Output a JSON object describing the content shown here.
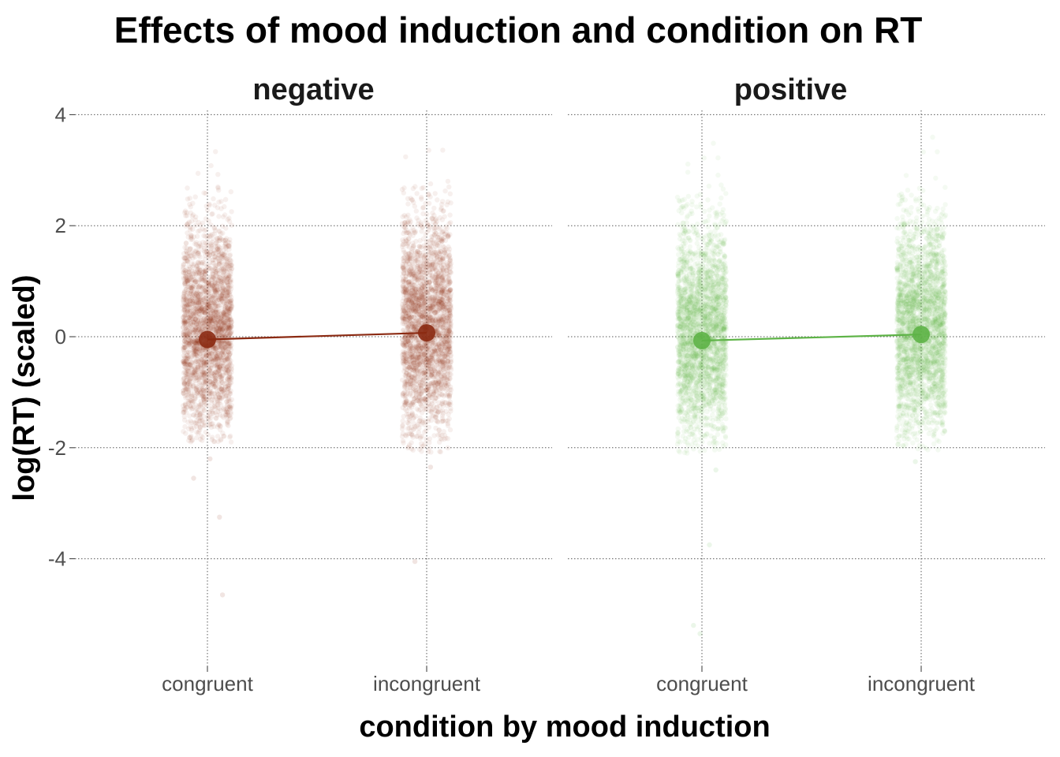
{
  "chart_data": {
    "type": "scatter",
    "title": "Effects of mood induction and condition on RT",
    "xlabel": "condition by mood induction",
    "ylabel": "log(RT) (scaled)",
    "ylim": [
      -5.4,
      4.1
    ],
    "yticks": [
      -4,
      -2,
      0,
      2,
      4
    ],
    "yticklabels": [
      "-4",
      "-2",
      "0",
      "2",
      "4"
    ],
    "categories": [
      "congruent",
      "incongruent"
    ],
    "grid": true,
    "legend": "none",
    "panels": [
      {
        "name": "negative",
        "color": "#8B2A12",
        "means": [
          -0.05,
          0.07
        ],
        "jitter": [
          {
            "category": "congruent",
            "core_range": [
              -1.9,
              3.55
            ],
            "outliers": [
              -2.55,
              -3.25,
              -4.65,
              -2.2
            ]
          },
          {
            "category": "incongruent",
            "core_range": [
              -2.1,
              3.6
            ],
            "outliers": [
              -2.35,
              -4.05
            ]
          }
        ]
      },
      {
        "name": "positive",
        "color": "#5DB346",
        "means": [
          -0.07,
          0.04
        ],
        "jitter": [
          {
            "category": "congruent",
            "core_range": [
              -2.1,
              3.6
            ],
            "outliers": [
              -2.4,
              -3.75,
              -5.2,
              -5.35
            ]
          },
          {
            "category": "incongruent",
            "core_range": [
              -2.05,
              3.65
            ],
            "outliers": [
              -2.25
            ]
          }
        ]
      }
    ]
  }
}
